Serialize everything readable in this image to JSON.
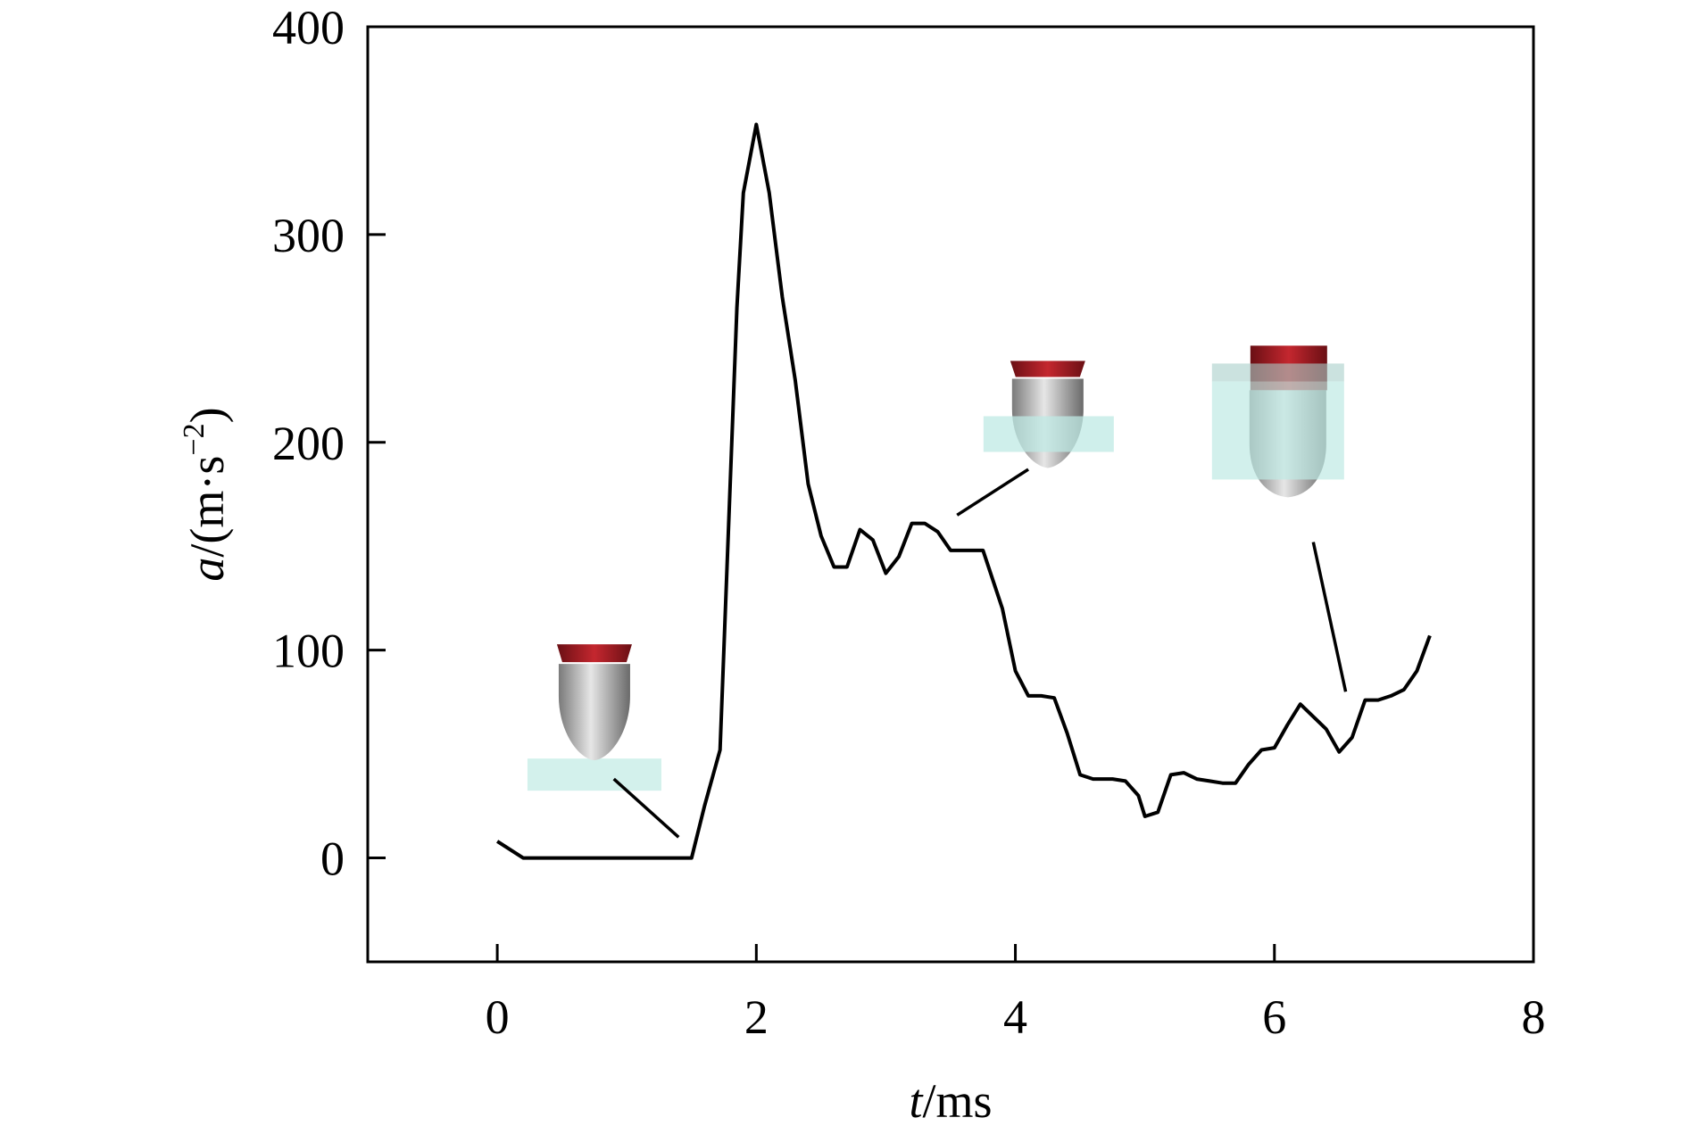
{
  "chart_data": {
    "type": "line",
    "title": "",
    "xlabel": {
      "var": "t",
      "unit": "/ms"
    },
    "ylabel": {
      "var": "a",
      "unit_pre": "/(m·s",
      "unit_sup": "−2",
      "unit_post": ")"
    },
    "xlim": [
      -1,
      8
    ],
    "ylim": [
      -50,
      400
    ],
    "xticks": [
      0,
      2,
      4,
      6,
      8
    ],
    "yticks": [
      0,
      100,
      200,
      300,
      400
    ],
    "grid": false,
    "legend": "none",
    "line_color": "#000000",
    "series": [
      {
        "x": [
          0,
          0.2,
          1.5,
          1.6,
          1.72,
          1.85,
          1.9,
          2.0,
          2.1,
          2.2,
          2.3,
          2.4,
          2.5,
          2.6,
          2.7,
          2.8,
          2.9,
          3.0,
          3.1,
          3.2,
          3.3,
          3.4,
          3.5,
          3.6,
          3.75,
          3.9,
          4.0,
          4.1,
          4.2,
          4.3,
          4.4,
          4.5,
          4.6,
          4.75,
          4.85,
          4.95,
          5.0,
          5.1,
          5.2,
          5.3,
          5.4,
          5.5,
          5.6,
          5.7,
          5.8,
          5.9,
          6.0,
          6.1,
          6.2,
          6.3,
          6.4,
          6.5,
          6.6,
          6.7,
          6.8,
          6.9,
          7.0,
          7.1,
          7.2
        ],
        "y": [
          8,
          0,
          0,
          25,
          52,
          265,
          320,
          353,
          320,
          270,
          230,
          180,
          155,
          140,
          140,
          158,
          153,
          137,
          145,
          161,
          161,
          157,
          148,
          148,
          148,
          120,
          90,
          78,
          78,
          77,
          60,
          40,
          38,
          38,
          37,
          30,
          20,
          22,
          40,
          41,
          38,
          37,
          36,
          36,
          45,
          52,
          53,
          64,
          74,
          68,
          62,
          51,
          58,
          76,
          76,
          78,
          81,
          90,
          107
        ]
      }
    ],
    "insets": [
      {
        "name": "inset-initial-contact",
        "x": 0.75,
        "y": 65,
        "line_from": [
          0.9,
          38
        ],
        "line_to": [
          1.4,
          10
        ]
      },
      {
        "name": "inset-partial-penetration",
        "x": 4.25,
        "y": 210,
        "line_from": [
          4.1,
          187
        ],
        "line_to": [
          3.55,
          165
        ]
      },
      {
        "name": "inset-deep-penetration",
        "x": 6.4,
        "y": 195,
        "line_from": [
          6.3,
          152
        ],
        "line_to": [
          6.55,
          80
        ]
      }
    ]
  }
}
